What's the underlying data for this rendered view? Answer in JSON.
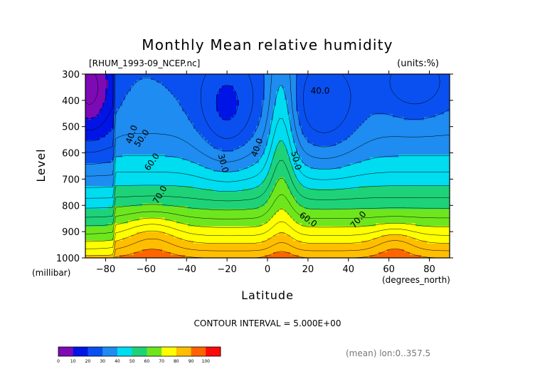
{
  "chart_data": {
    "type": "heatmap",
    "title": "Monthly Mean relative humidity",
    "file_label": "[RHUM_1993-09_NCEP.nc]",
    "units_label": "(units:%)",
    "xlabel": "Latitude",
    "x_unit_label": "(degrees_north)",
    "ylabel": "Level",
    "y_unit_label": "(millibar)",
    "xlim": [
      -90,
      90
    ],
    "ylim": [
      1000,
      300
    ],
    "x_ticks": [
      -80,
      -60,
      -40,
      -20,
      0,
      20,
      40,
      60,
      80
    ],
    "y_ticks": [
      300,
      400,
      500,
      600,
      700,
      800,
      900,
      1000
    ],
    "contour_interval_text": "CONTOUR INTERVAL = 5.000E+00",
    "mean_note": "(mean) lon:0..357.5",
    "contour_labels": [
      {
        "text": "40.0",
        "lat": -67,
        "lev": 530,
        "angle": -70
      },
      {
        "text": "50.0",
        "lat": -62,
        "lev": 545,
        "angle": -55
      },
      {
        "text": "60.0",
        "lat": -57,
        "lev": 635,
        "angle": -55
      },
      {
        "text": "70.0",
        "lat": -53,
        "lev": 760,
        "angle": -60
      },
      {
        "text": "30.0",
        "lat": -22,
        "lev": 640,
        "angle": 75
      },
      {
        "text": "40.0",
        "lat": -5,
        "lev": 580,
        "angle": -70
      },
      {
        "text": "50.0",
        "lat": 14,
        "lev": 630,
        "angle": 75
      },
      {
        "text": "60.0",
        "lat": 20,
        "lev": 855,
        "angle": 35
      },
      {
        "text": "70.0",
        "lat": 45,
        "lev": 855,
        "angle": -50
      },
      {
        "text": "40.0",
        "lat": 26,
        "lev": 365,
        "angle": 0
      }
    ],
    "colorbar": {
      "levels": [
        0,
        10,
        20,
        30,
        40,
        50,
        60,
        70,
        80,
        90,
        100
      ],
      "colors": [
        "#7d0ab4",
        "#0014e6",
        "#0a50f0",
        "#1e8cf0",
        "#00dcf0",
        "#1ed278",
        "#6ee61e",
        "#ffff00",
        "#ffbe00",
        "#ff6400",
        "#ff0a0a"
      ]
    },
    "grid": false,
    "legend": "colorbar-bottom-left"
  }
}
